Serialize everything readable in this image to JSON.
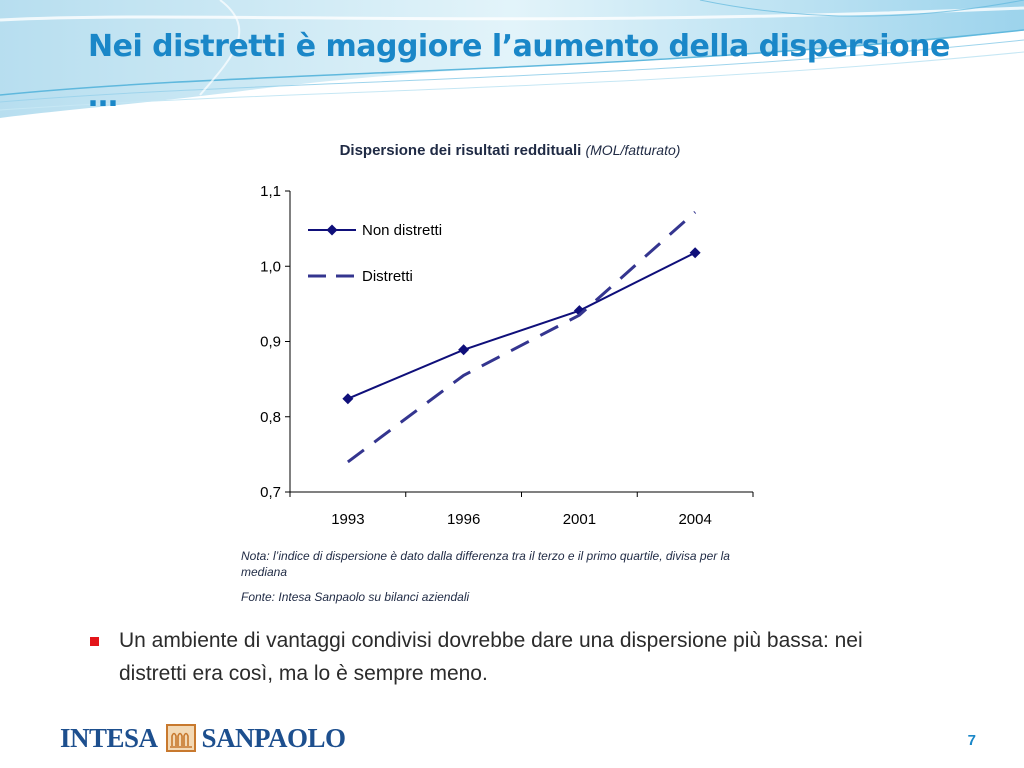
{
  "slide": {
    "title": "Nei distretti è maggiore l’aumento della dispersione …",
    "bullet": "Un ambiente di vantaggi condivisi dovrebbe dare una dispersione più bassa: nei distretti era così, ma lo è sempre meno.",
    "page_number": "7"
  },
  "logo": {
    "left_word": "INTESA",
    "right_word": "SANPAOLO"
  },
  "colors": {
    "title": "#1a87c8",
    "bullet_mark": "#e3151a",
    "series_non_distretti": "#0f0f7a",
    "series_distretti": "#34358f",
    "logo": "#1d4f8e"
  },
  "chart_data": {
    "type": "line",
    "title": "Dispersione dei risultati reddituali",
    "subtitle": "(MOL/fatturato)",
    "categories": [
      "1993",
      "1996",
      "2001",
      "2004"
    ],
    "ylim": [
      0.7,
      1.1
    ],
    "yticks": [
      "0,7",
      "0,8",
      "0,9",
      "1,0",
      "1,1"
    ],
    "grid": false,
    "legend_position": "top-left",
    "series": [
      {
        "name": "Non distretti",
        "values": [
          0.824,
          0.889,
          0.941,
          1.018
        ],
        "style": "solid-diamond"
      },
      {
        "name": "Distretti",
        "values": [
          0.74,
          0.855,
          0.935,
          1.072
        ],
        "style": "dashed"
      }
    ],
    "note": "Nota: l’indice di dispersione  è dato dalla differenza tra il terzo e il primo quartile, divisa per la mediana",
    "source": "Fonte: Intesa Sanpaolo su bilanci aziendali"
  }
}
